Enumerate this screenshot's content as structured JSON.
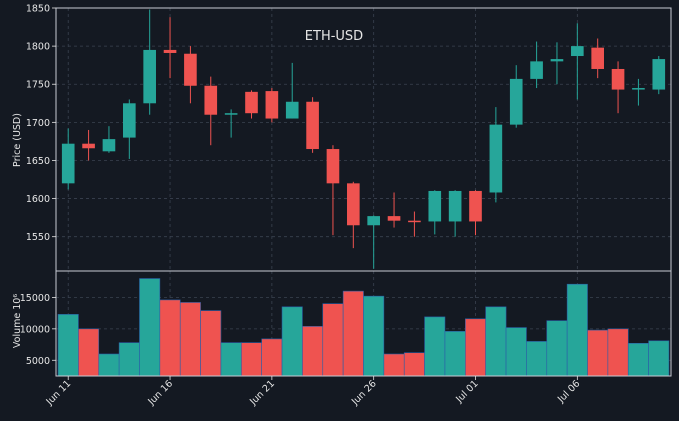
{
  "colors": {
    "background": "#141922",
    "panel_border": "#c8ccd4",
    "grid": "#3a4250",
    "text": "#e6e6e6",
    "up": "#26a69a",
    "down": "#ef5350"
  },
  "chart_data": [
    {
      "type": "candlestick",
      "title": "ETH-USD",
      "ylabel": "Price (USD)",
      "ylim": [
        1505,
        1850
      ],
      "yticks": [
        1550,
        1600,
        1650,
        1700,
        1750,
        1800,
        1850
      ],
      "grid": true,
      "x": [
        "Jun 11",
        "Jun 12",
        "Jun 13",
        "Jun 14",
        "Jun 15",
        "Jun 16",
        "Jun 17",
        "Jun 18",
        "Jun 19",
        "Jun 20",
        "Jun 21",
        "Jun 22",
        "Jun 23",
        "Jun 24",
        "Jun 25",
        "Jun 26",
        "Jun 27",
        "Jun 28",
        "Jun 29",
        "Jun 30",
        "Jul 01",
        "Jul 02",
        "Jul 03",
        "Jul 04",
        "Jul 05",
        "Jul 06",
        "Jul 07",
        "Jul 08",
        "Jul 09",
        "Jul 10"
      ],
      "open": [
        1620,
        1672,
        1662,
        1680,
        1725,
        1795,
        1790,
        1748,
        1710,
        1740,
        1741,
        1705,
        1727,
        1665,
        1620,
        1565,
        1577,
        1571,
        1570,
        1570,
        1610,
        1608,
        1697,
        1757,
        1780,
        1787,
        1798,
        1770,
        1743,
        1743
      ],
      "high": [
        1692,
        1690,
        1695,
        1730,
        1848,
        1838,
        1800,
        1760,
        1717,
        1742,
        1745,
        1778,
        1733,
        1670,
        1622,
        1578,
        1608,
        1583,
        1611,
        1611,
        1611,
        1720,
        1775,
        1806,
        1805,
        1830,
        1810,
        1780,
        1757,
        1787
      ],
      "low": [
        1612,
        1650,
        1660,
        1652,
        1710,
        1758,
        1725,
        1670,
        1680,
        1705,
        1700,
        1705,
        1660,
        1552,
        1535,
        1508,
        1562,
        1550,
        1553,
        1550,
        1552,
        1595,
        1693,
        1745,
        1750,
        1730,
        1758,
        1712,
        1722,
        1737
      ],
      "close": [
        1672,
        1666,
        1678,
        1725,
        1795,
        1791,
        1748,
        1710,
        1712,
        1712,
        1705,
        1727,
        1665,
        1620,
        1565,
        1577,
        1571,
        1570,
        1610,
        1610,
        1570,
        1697,
        1757,
        1780,
        1783,
        1800,
        1770,
        1743,
        1745,
        1783
      ]
    },
    {
      "type": "bar",
      "ylabel": "Volume  10⁶",
      "ylim": [
        2500,
        19200
      ],
      "yticks": [
        5000,
        10000,
        15000
      ],
      "ytick_labels": [
        "5000",
        "10000",
        "15000"
      ],
      "grid": true,
      "xticks": [
        "Jun 11",
        "Jun 16",
        "Jun 21",
        "Jun 26",
        "Jul 01",
        "Jul 06"
      ],
      "values": [
        12300,
        10000,
        6000,
        7800,
        18000,
        14600,
        14200,
        12900,
        7800,
        7800,
        8400,
        13500,
        10400,
        14000,
        16000,
        15200,
        6000,
        6200,
        11900,
        9600,
        11600,
        13500,
        10200,
        8000,
        11300,
        17100,
        9800,
        10000,
        7700,
        8100
      ]
    }
  ]
}
